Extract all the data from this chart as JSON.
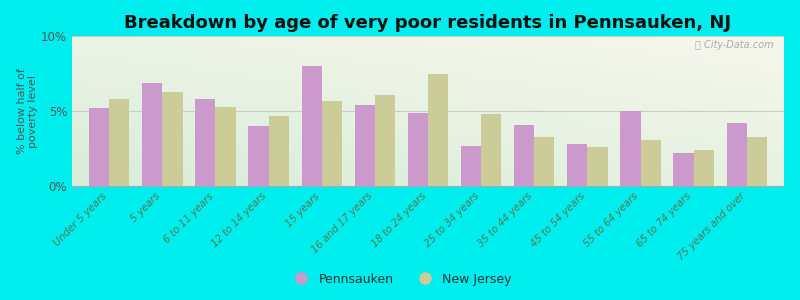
{
  "title": "Breakdown by age of very poor residents in Pennsauken, NJ",
  "ylabel": "% below half of\npoverty level",
  "categories": [
    "Under 5 years",
    "5 years",
    "6 to 11 years",
    "12 to 14 years",
    "15 years",
    "16 and 17 years",
    "18 to 24 years",
    "25 to 34 years",
    "35 to 44 years",
    "45 to 54 years",
    "55 to 64 years",
    "65 to 74 years",
    "75 years and over"
  ],
  "pennsauken_values": [
    5.2,
    6.9,
    5.8,
    4.0,
    8.0,
    5.4,
    4.9,
    2.7,
    4.1,
    2.8,
    5.0,
    2.2,
    4.2
  ],
  "nj_values": [
    5.8,
    6.3,
    5.3,
    4.7,
    5.7,
    6.1,
    7.5,
    4.8,
    3.3,
    2.6,
    3.1,
    2.4,
    3.3
  ],
  "pennsauken_color": "#cc99cc",
  "nj_color": "#cccc99",
  "background_color": "#00eeee",
  "plot_bg_top": "#f7f7ee",
  "plot_bg_bottom": "#ddeedd",
  "ylim": [
    0,
    10
  ],
  "yticks": [
    0,
    5,
    10
  ],
  "ytick_labels": [
    "0%",
    "5%",
    "10%"
  ],
  "bar_width": 0.38,
  "title_fontsize": 13,
  "legend_labels": [
    "Pennsauken",
    "New Jersey"
  ],
  "watermark": "ⓘ City-Data.com"
}
